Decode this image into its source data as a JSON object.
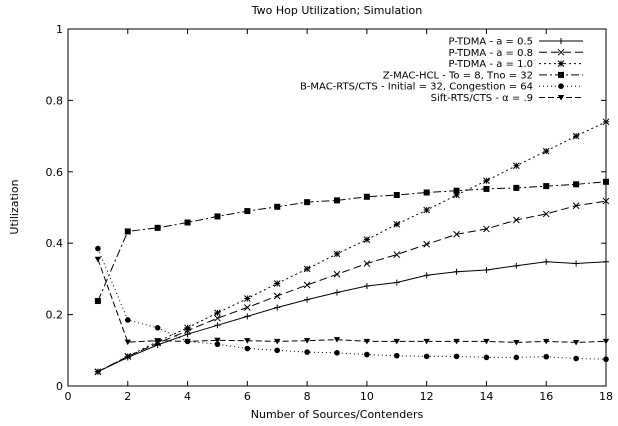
{
  "chart_data": {
    "type": "line",
    "title": "Two Hop Utilization; Simulation",
    "xlabel": "Number of Sources/Contenders",
    "ylabel": "Utilization",
    "xlim": [
      0,
      18
    ],
    "ylim": [
      0,
      1
    ],
    "xticks": [
      0,
      2,
      4,
      6,
      8,
      10,
      12,
      14,
      16,
      18
    ],
    "yticks": [
      0,
      0.2,
      0.4,
      0.6,
      0.8,
      1
    ],
    "xtick_labels": [
      "0",
      "2",
      "4",
      "6",
      "8",
      "10",
      "12",
      "14",
      "16",
      "18"
    ],
    "ytick_labels": [
      "0",
      "0.2",
      "0.4",
      "0.6",
      "0.8",
      "1"
    ],
    "grid": false,
    "legend_position": "top-right",
    "series": [
      {
        "name": "P-TDMA - a = 0.5",
        "marker": "plus",
        "dash": "none",
        "x": [
          1,
          2,
          3,
          4,
          5,
          6,
          7,
          8,
          9,
          10,
          11,
          12,
          13,
          14,
          15,
          16,
          17,
          18
        ],
        "y": [
          0.04,
          0.08,
          0.115,
          0.145,
          0.17,
          0.195,
          0.22,
          0.242,
          0.262,
          0.28,
          0.29,
          0.31,
          0.32,
          0.325,
          0.337,
          0.348,
          0.343,
          0.348
        ]
      },
      {
        "name": "P-TDMA - a = 0.8",
        "marker": "cross",
        "dash": "8,4",
        "x": [
          1,
          2,
          3,
          4,
          5,
          6,
          7,
          8,
          9,
          10,
          11,
          12,
          13,
          14,
          15,
          16,
          17,
          18
        ],
        "y": [
          0.04,
          0.083,
          0.12,
          0.155,
          0.19,
          0.22,
          0.252,
          0.283,
          0.313,
          0.343,
          0.368,
          0.397,
          0.425,
          0.44,
          0.465,
          0.482,
          0.505,
          0.518
        ]
      },
      {
        "name": "P-TDMA - a = 1.0",
        "marker": "star",
        "dash": "2,3",
        "x": [
          1,
          2,
          3,
          4,
          5,
          6,
          7,
          8,
          9,
          10,
          11,
          12,
          13,
          14,
          15,
          16,
          17,
          18
        ],
        "y": [
          0.04,
          0.083,
          0.125,
          0.163,
          0.205,
          0.245,
          0.287,
          0.328,
          0.37,
          0.41,
          0.453,
          0.493,
          0.535,
          0.575,
          0.617,
          0.658,
          0.7,
          0.74
        ]
      },
      {
        "name": "Z-MAC-HCL - To = 8, Tno = 32",
        "marker": "square",
        "dash": "8,3,2,3",
        "x": [
          1,
          2,
          3,
          4,
          5,
          6,
          7,
          8,
          9,
          10,
          11,
          12,
          13,
          14,
          15,
          16,
          17,
          18
        ],
        "y": [
          0.238,
          0.433,
          0.443,
          0.458,
          0.475,
          0.49,
          0.502,
          0.515,
          0.52,
          0.53,
          0.535,
          0.542,
          0.547,
          0.552,
          0.555,
          0.56,
          0.565,
          0.572
        ]
      },
      {
        "name": "B-MAC-RTS/CTS - Initial = 32, Congestion = 64",
        "marker": "circle",
        "dash": "1,3",
        "x": [
          1,
          2,
          3,
          4,
          5,
          6,
          7,
          8,
          9,
          10,
          11,
          12,
          13,
          14,
          15,
          16,
          17,
          18
        ],
        "y": [
          0.385,
          0.185,
          0.163,
          0.125,
          0.117,
          0.105,
          0.1,
          0.095,
          0.093,
          0.088,
          0.085,
          0.083,
          0.083,
          0.08,
          0.08,
          0.082,
          0.077,
          0.075
        ]
      },
      {
        "name": "Sift-RTS/CTS - α = .9",
        "marker": "triangle-down",
        "dash": "6,3",
        "x": [
          1,
          2,
          3,
          4,
          5,
          6,
          7,
          8,
          9,
          10,
          11,
          12,
          13,
          14,
          15,
          16,
          17,
          18
        ],
        "y": [
          0.355,
          0.123,
          0.127,
          0.125,
          0.128,
          0.127,
          0.125,
          0.127,
          0.13,
          0.125,
          0.125,
          0.125,
          0.125,
          0.125,
          0.122,
          0.125,
          0.122,
          0.125
        ]
      }
    ]
  }
}
